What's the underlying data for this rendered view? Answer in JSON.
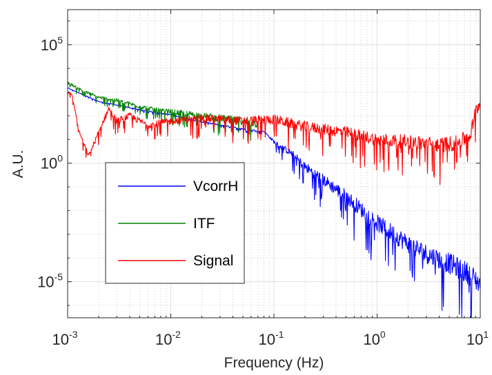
{
  "chart_data": {
    "type": "line",
    "title": "",
    "xlabel": "Frequency (Hz)",
    "ylabel": "A.U.",
    "x_scale": "log",
    "y_scale": "log",
    "xlim": [
      0.001,
      10
    ],
    "ylim": [
      3e-07,
      3000000
    ],
    "x_ticks": [
      {
        "value": 0.001,
        "base": "10",
        "exp": "-3"
      },
      {
        "value": 0.01,
        "base": "10",
        "exp": "-2"
      },
      {
        "value": 0.1,
        "base": "10",
        "exp": "-1"
      },
      {
        "value": 1,
        "base": "10",
        "exp": "0"
      },
      {
        "value": 10,
        "base": "10",
        "exp": "1"
      }
    ],
    "y_ticks": [
      {
        "value": 1e-05,
        "base": "10",
        "exp": "-5"
      },
      {
        "value": 1,
        "base": "10",
        "exp": "0"
      },
      {
        "value": 100000,
        "base": "10",
        "exp": "5"
      }
    ],
    "grid": true,
    "legend_position": "left-center",
    "series": [
      {
        "name": "VcorrH",
        "color": "#0000ff",
        "noisy": true,
        "noise_dex": [
          [
            0.001,
            0.02
          ],
          [
            0.08,
            0.05
          ],
          [
            0.2,
            0.35
          ],
          [
            1,
            0.6
          ],
          [
            10,
            0.8
          ]
        ],
        "x": [
          0.001,
          0.002,
          0.005,
          0.01,
          0.02,
          0.05,
          0.08,
          0.1,
          0.15,
          0.2,
          0.3,
          0.5,
          1,
          2,
          3,
          5,
          8,
          10
        ],
        "y": [
          1500,
          400,
          180,
          110,
          55,
          28,
          22,
          8,
          2.5,
          0.7,
          0.2,
          0.04,
          0.003,
          0.0004,
          0.00015,
          6e-05,
          2e-05,
          8e-06
        ]
      },
      {
        "name": "ITF",
        "color": "#008000",
        "noisy": true,
        "noise_dex": [
          [
            0.001,
            0.08
          ],
          [
            0.01,
            0.18
          ],
          [
            0.07,
            0.3
          ]
        ],
        "x": [
          0.001,
          0.0015,
          0.002,
          0.003,
          0.005,
          0.008,
          0.01,
          0.02,
          0.03,
          0.05,
          0.07
        ],
        "y": [
          2500,
          1000,
          600,
          450,
          250,
          160,
          150,
          100,
          80,
          60,
          45
        ]
      },
      {
        "name": "Signal",
        "color": "#ff0000",
        "noisy": true,
        "noise_dex": [
          [
            0.001,
            0.05
          ],
          [
            0.002,
            0.2
          ],
          [
            0.01,
            0.25
          ],
          [
            0.1,
            0.35
          ],
          [
            1,
            0.45
          ],
          [
            5,
            0.55
          ],
          [
            10,
            0.5
          ]
        ],
        "x": [
          0.001,
          0.0011,
          0.0013,
          0.0016,
          0.002,
          0.0025,
          0.003,
          0.004,
          0.006,
          0.01,
          0.02,
          0.05,
          0.1,
          0.2,
          0.5,
          1,
          2,
          4,
          6,
          8,
          9,
          10
        ],
        "y": [
          1000,
          800,
          20,
          2,
          20,
          200,
          60,
          100,
          40,
          60,
          80,
          60,
          70,
          35,
          20,
          10,
          8,
          6,
          7,
          15,
          150,
          400
        ]
      }
    ]
  }
}
